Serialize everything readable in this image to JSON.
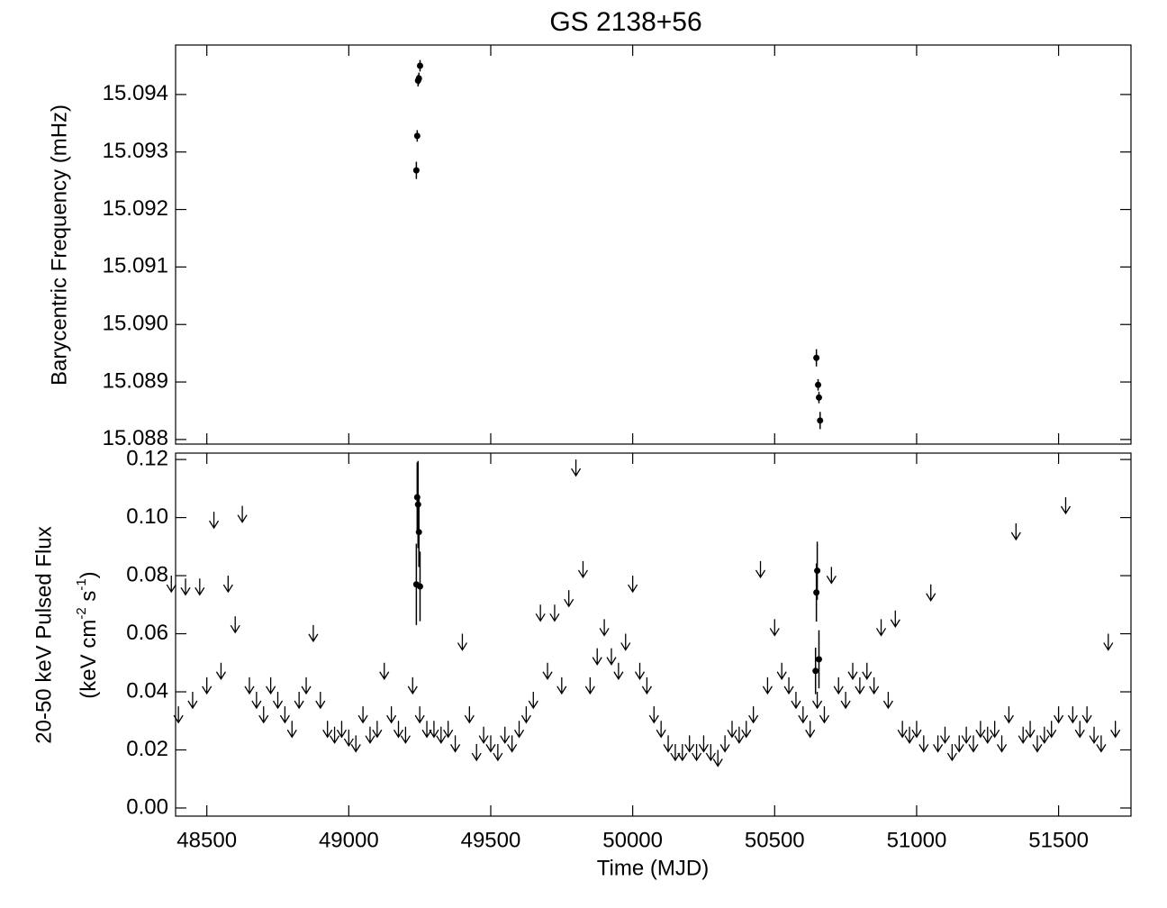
{
  "chart_data": [
    {
      "type": "scatter",
      "title": "GS 2138+56",
      "ylabel": "Barycentric Frequency (mHz)",
      "xlim": [
        48390,
        51755
      ],
      "ylim": [
        15.08792,
        15.09486
      ],
      "xticks": [
        48500,
        49000,
        49500,
        50000,
        50500,
        51000,
        51500
      ],
      "yticks": [
        15.088,
        15.089,
        {
          "value": 15.09,
          "label": "15.090"
        },
        15.091,
        15.092,
        15.093,
        15.094
      ],
      "series": [
        {
          "kind": "points",
          "color": "#000000",
          "x": [
            49238,
            49241,
            49244,
            49247,
            49251,
            50647,
            50653,
            50656,
            50660
          ],
          "values": [
            15.09268,
            15.09328,
            15.09424,
            15.09428,
            15.0945,
            15.08942,
            15.08895,
            15.08873,
            15.08833
          ],
          "errors": [
            0.00015,
            0.0001,
            0.0001,
            0.0001,
            0.0001,
            0.00015,
            0.0001,
            0.0001,
            0.00015
          ]
        }
      ]
    },
    {
      "type": "scatter",
      "xlabel": "Time (MJD)",
      "ylabel": "20-50 keV Pulsed Flux",
      "ylabel2": [
        "(keV cm",
        "-2",
        " s",
        "-1",
        ")"
      ],
      "xlim": [
        48390,
        51755
      ],
      "ylim": [
        -0.0028,
        0.1222
      ],
      "xticks": [
        48500,
        49000,
        49500,
        50000,
        50500,
        51000,
        51500
      ],
      "yticks": [
        {
          "value": 0,
          "label": "0.00"
        },
        0.02,
        0.04,
        0.06,
        0.08,
        {
          "value": 0.1,
          "label": "0.10"
        },
        0.12
      ],
      "series": [
        {
          "kind": "points",
          "color": "#000000",
          "x": [
            49238,
            49241,
            49244,
            49247,
            49251,
            50644,
            50647,
            50650,
            50656
          ],
          "values": [
            0.077,
            0.107,
            0.1045,
            0.095,
            0.0763,
            0.0472,
            0.0742,
            0.0817,
            0.0512
          ],
          "errors": [
            0.014,
            0.012,
            0.015,
            0.012,
            0.012,
            0.008,
            0.01,
            0.01,
            0.01
          ]
        },
        {
          "kind": "upper_limits",
          "color": "#000000",
          "x": [
            48375,
            48400,
            48425,
            48450,
            48475,
            48500,
            48525,
            48550,
            48575,
            48600,
            48625,
            48650,
            48675,
            48700,
            48725,
            48750,
            48775,
            48800,
            48825,
            48850,
            48875,
            48900,
            48925,
            48950,
            48975,
            49000,
            49025,
            49050,
            49075,
            49100,
            49125,
            49150,
            49175,
            49200,
            49225,
            49250,
            49275,
            49300,
            49325,
            49350,
            49375,
            49400,
            49425,
            49450,
            49475,
            49500,
            49525,
            49550,
            49575,
            49600,
            49625,
            49650,
            49675,
            49700,
            49725,
            49750,
            49775,
            49800,
            49825,
            49850,
            49875,
            49900,
            49925,
            49950,
            49975,
            50000,
            50025,
            50050,
            50075,
            50100,
            50125,
            50150,
            50175,
            50200,
            50225,
            50250,
            50275,
            50300,
            50325,
            50350,
            50375,
            50400,
            50425,
            50450,
            50475,
            50500,
            50525,
            50550,
            50575,
            50600,
            50625,
            50650,
            50675,
            50700,
            50725,
            50750,
            50775,
            50800,
            50825,
            50850,
            50875,
            50900,
            50925,
            50950,
            50975,
            51000,
            51025,
            51050,
            51075,
            51100,
            51125,
            51150,
            51175,
            51200,
            51225,
            51250,
            51275,
            51300,
            51325,
            51350,
            51375,
            51400,
            51425,
            51450,
            51475,
            51500,
            51525,
            51550,
            51575,
            51600,
            51625,
            51650,
            51675,
            51700
          ],
          "values": [
            0.08,
            0.035,
            0.079,
            0.04,
            0.079,
            0.045,
            0.102,
            0.05,
            0.08,
            0.066,
            0.104,
            0.045,
            0.04,
            0.035,
            0.045,
            0.04,
            0.035,
            0.03,
            0.04,
            0.045,
            0.063,
            0.04,
            0.03,
            0.028,
            0.03,
            0.027,
            0.025,
            0.035,
            0.028,
            0.03,
            0.05,
            0.035,
            0.03,
            0.028,
            0.045,
            0.035,
            0.03,
            0.03,
            0.028,
            0.03,
            0.025,
            0.06,
            0.035,
            0.022,
            0.028,
            0.025,
            0.022,
            0.028,
            0.025,
            0.03,
            0.035,
            0.04,
            0.07,
            0.05,
            0.07,
            0.045,
            0.075,
            0.12,
            0.085,
            0.045,
            0.055,
            0.065,
            0.055,
            0.05,
            0.06,
            0.08,
            0.05,
            0.045,
            0.035,
            0.03,
            0.025,
            0.022,
            0.022,
            0.025,
            0.022,
            0.025,
            0.022,
            0.02,
            0.025,
            0.03,
            0.028,
            0.03,
            0.035,
            0.085,
            0.045,
            0.065,
            0.05,
            0.045,
            0.04,
            0.035,
            0.03,
            0.04,
            0.035,
            0.083,
            0.045,
            0.04,
            0.05,
            0.045,
            0.05,
            0.045,
            0.065,
            0.04,
            0.068,
            0.03,
            0.028,
            0.03,
            0.025,
            0.077,
            0.025,
            0.028,
            0.022,
            0.025,
            0.028,
            0.025,
            0.03,
            0.028,
            0.03,
            0.025,
            0.035,
            0.098,
            0.028,
            0.03,
            0.025,
            0.028,
            0.03,
            0.035,
            0.107,
            0.035,
            0.03,
            0.035,
            0.028,
            0.025,
            0.06,
            0.03
          ]
        }
      ]
    }
  ]
}
